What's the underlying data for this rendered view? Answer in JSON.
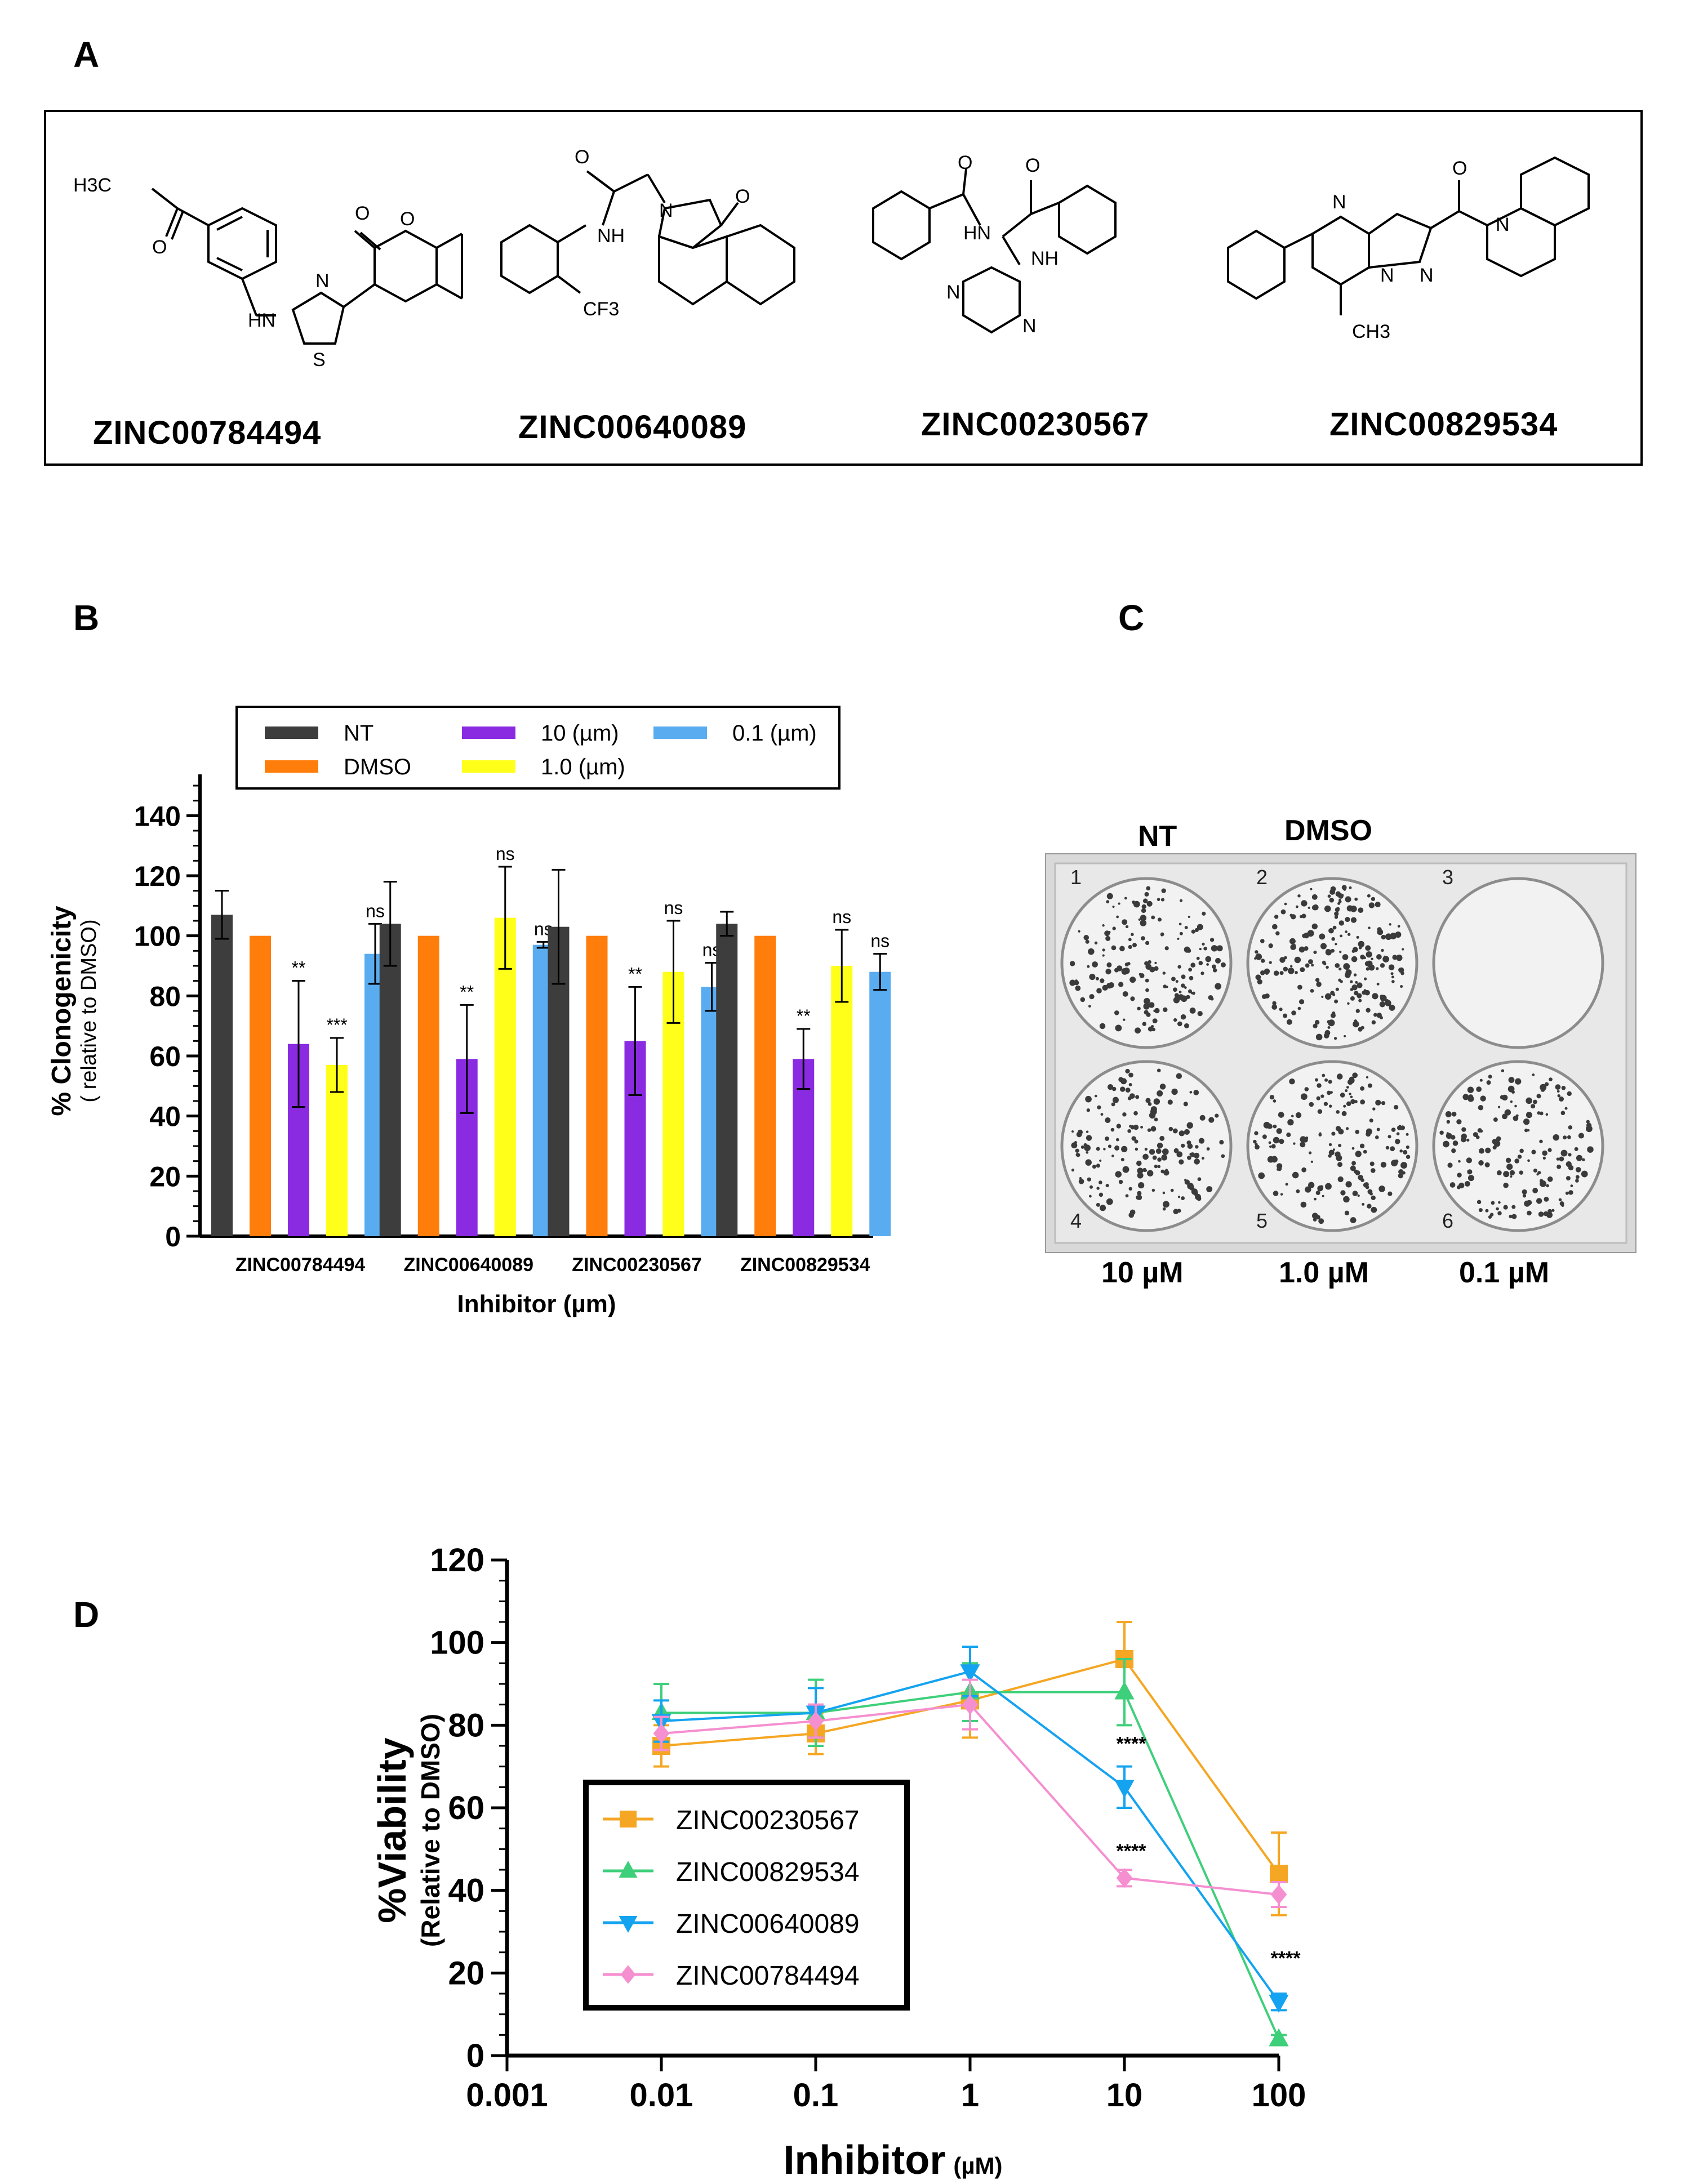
{
  "panels": {
    "a": "A",
    "b": "B",
    "c": "C",
    "d": "D"
  },
  "structures": {
    "names": [
      "ZINC00784494",
      "ZINC00640089",
      "ZINC00230567",
      "ZINC00829534"
    ],
    "atom_labels": {
      "s1": [
        "H3C",
        "O",
        "O",
        "O",
        "N",
        "HN",
        "S"
      ],
      "s2": [
        "O",
        "NH",
        "N",
        "O",
        "CF3"
      ],
      "s3": [
        "O",
        "O",
        "HN",
        "NH",
        "N",
        "N"
      ],
      "s4": [
        "N",
        "N",
        "N",
        "O",
        "N",
        "CH3"
      ]
    }
  },
  "plate": {
    "top_labels": [
      "NT",
      "DMSO"
    ],
    "well_numbers": [
      "1",
      "2",
      "3",
      "4",
      "5",
      "6"
    ],
    "bottom_labels": [
      "10 µM",
      "1.0 µM",
      "0.1 µM"
    ]
  },
  "chart_data": [
    {
      "panel": "B",
      "type": "bar",
      "xlabel": "Inhibitor (µm)",
      "ylabel": "% Clonogenicity",
      "ylabel_sub": "( relative to DMSO)",
      "ylim": [
        0,
        150
      ],
      "yticks": [
        0,
        20,
        40,
        60,
        80,
        100,
        120,
        140
      ],
      "categories": [
        "ZINC00784494",
        "ZINC00640089",
        "ZINC00230567",
        "ZINC00829534"
      ],
      "legend_placement": "top",
      "series": [
        {
          "name": "NT",
          "color": "#3d3d3d",
          "values": [
            107,
            104,
            103,
            104
          ],
          "errors": [
            8,
            14,
            19,
            4
          ]
        },
        {
          "name": "DMSO",
          "color": "#ff7d0a",
          "values": [
            100,
            100,
            100,
            100
          ],
          "errors": [
            0,
            0,
            0,
            0
          ]
        },
        {
          "name": "10 (µm)",
          "color": "#8a2be2",
          "values": [
            64,
            59,
            65,
            59
          ],
          "errors": [
            21,
            18,
            18,
            10
          ]
        },
        {
          "name": "1.0 (µm)",
          "color": "#ffff1a",
          "values": [
            57,
            106,
            88,
            90
          ],
          "errors": [
            9,
            17,
            17,
            12
          ]
        },
        {
          "name": "0.1 (µm)",
          "color": "#5aacf0",
          "values": [
            94,
            97,
            83,
            88
          ],
          "errors": [
            10,
            1,
            8,
            6
          ]
        }
      ],
      "annotations": [
        [
          "**",
          "***",
          "ns"
        ],
        [
          "**",
          "ns",
          "ns"
        ],
        [
          "**",
          "ns",
          "ns"
        ],
        [
          "**",
          "ns",
          "ns"
        ]
      ]
    },
    {
      "panel": "D",
      "type": "line",
      "xlabel": "Inhibitor",
      "xlabel_unit": "(µM)",
      "ylabel": "%Viability",
      "ylabel_sub": "(Relative to DMSO)",
      "x_scale": "log",
      "xlim": [
        0.001,
        100
      ],
      "xtick_labels": [
        "0.001",
        "0.01",
        "0.1",
        "1",
        "10",
        "100"
      ],
      "ylim": [
        0,
        120
      ],
      "yticks": [
        0,
        20,
        40,
        60,
        80,
        100,
        120
      ],
      "x": [
        0.01,
        0.1,
        1,
        10,
        100
      ],
      "legend_placement": "bottom-left",
      "series": [
        {
          "name": "ZINC00230567",
          "color": "#f5a623",
          "marker": "square",
          "values": [
            75,
            78,
            86,
            96,
            44
          ],
          "errors": [
            5,
            5,
            9,
            9,
            10
          ]
        },
        {
          "name": "ZINC00829534",
          "color": "#3ecf7a",
          "marker": "triangle-up",
          "values": [
            83,
            83,
            88,
            88,
            4
          ],
          "errors": [
            7,
            8,
            7,
            8,
            1
          ]
        },
        {
          "name": "ZINC00640089",
          "color": "#14a3f0",
          "marker": "triangle-down",
          "values": [
            81,
            83,
            93,
            65,
            13
          ],
          "errors": [
            5,
            6,
            6,
            5,
            2
          ]
        },
        {
          "name": "ZINC00784494",
          "color": "#f58fd0",
          "marker": "diamond",
          "values": [
            78,
            81,
            85,
            43,
            39
          ],
          "errors": [
            4,
            4,
            6,
            2,
            3
          ]
        }
      ],
      "annotations": [
        {
          "text": "****",
          "at_x": 10,
          "at_y": 74
        },
        {
          "text": "****",
          "at_x": 10,
          "at_y": 48
        },
        {
          "text": "****",
          "at_x": 100,
          "at_y": 22
        }
      ]
    }
  ]
}
